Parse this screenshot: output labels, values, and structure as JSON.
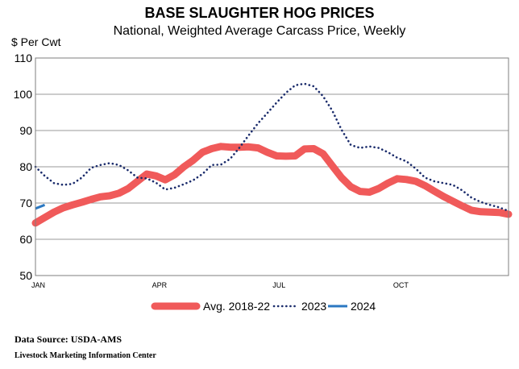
{
  "chart_data": {
    "type": "line",
    "title": "BASE SLAUGHTER HOG PRICES",
    "subtitle": "National, Weighted Average Carcass Price, Weekly",
    "ylabel": "$ Per Cwt",
    "xlabel": "",
    "ylim": [
      50,
      110
    ],
    "yticks": [
      50,
      60,
      70,
      80,
      90,
      100,
      110
    ],
    "xlim": [
      1,
      52
    ],
    "xticks": [
      {
        "week": 1,
        "label": "JAN"
      },
      {
        "week": 14,
        "label": "APR"
      },
      {
        "week": 27,
        "label": "JUL"
      },
      {
        "week": 40,
        "label": "OCT"
      }
    ],
    "grid": true,
    "legend_position": "bottom",
    "series": [
      {
        "name": "Avg. 2018-22",
        "color": "#f05a5a",
        "style": "solid-thick",
        "x": [
          1,
          2,
          3,
          4,
          5,
          6,
          7,
          8,
          9,
          10,
          11,
          12,
          13,
          14,
          15,
          16,
          17,
          18,
          19,
          20,
          21,
          22,
          23,
          24,
          25,
          26,
          27,
          28,
          29,
          30,
          31,
          32,
          33,
          34,
          35,
          36,
          37,
          38,
          39,
          40,
          41,
          42,
          43,
          44,
          45,
          46,
          47,
          48,
          49,
          50,
          51,
          52
        ],
        "values": [
          64.5,
          66,
          67.5,
          68.7,
          69.5,
          70.2,
          71,
          71.7,
          72,
          72.7,
          74,
          76,
          78,
          77.5,
          76.4,
          77.8,
          80,
          81.8,
          84,
          85,
          85.6,
          85.4,
          85.4,
          85.5,
          85.2,
          84,
          83,
          82.9,
          83,
          84.9,
          85,
          83.6,
          80.3,
          77,
          74.5,
          73.2,
          73,
          74,
          75.5,
          76.7,
          76.5,
          76,
          74.8,
          73.3,
          71.8,
          70.5,
          69.2,
          68,
          67.6,
          67.5,
          67.4,
          66.9
        ]
      },
      {
        "name": "2023",
        "color": "#1a2b6b",
        "style": "dotted",
        "x": [
          1,
          2,
          3,
          4,
          5,
          6,
          7,
          8,
          9,
          10,
          11,
          12,
          13,
          14,
          15,
          16,
          17,
          18,
          19,
          20,
          21,
          22,
          23,
          24,
          25,
          26,
          27,
          28,
          29,
          30,
          31,
          32,
          33,
          34,
          35,
          36,
          37,
          38,
          39,
          40,
          41,
          42,
          43,
          44,
          45,
          46,
          47,
          48,
          49,
          50,
          51,
          52
        ],
        "values": [
          80,
          77.5,
          75.5,
          75,
          75.3,
          77,
          79.7,
          80.5,
          81,
          80.5,
          79,
          77,
          76.8,
          75.6,
          73.7,
          74.2,
          75.2,
          76.3,
          78,
          80.5,
          80.6,
          82.2,
          85.3,
          88.7,
          92,
          94.8,
          97.7,
          100.4,
          102.5,
          102.9,
          102.2,
          99.5,
          95.5,
          90.2,
          86,
          85.2,
          85.6,
          85.2,
          84,
          82.5,
          81.5,
          79.5,
          77,
          76,
          75.5,
          75,
          73.5,
          71.5,
          70.3,
          69.5,
          68.8,
          67.8
        ]
      },
      {
        "name": "2024",
        "color": "#2b78c2",
        "style": "solid",
        "x": [
          1,
          2
        ],
        "values": [
          68.5,
          69.5
        ]
      }
    ]
  },
  "footer": {
    "source": "Data Source:  USDA-AMS",
    "center": "Livestock Marketing Information  Center"
  }
}
